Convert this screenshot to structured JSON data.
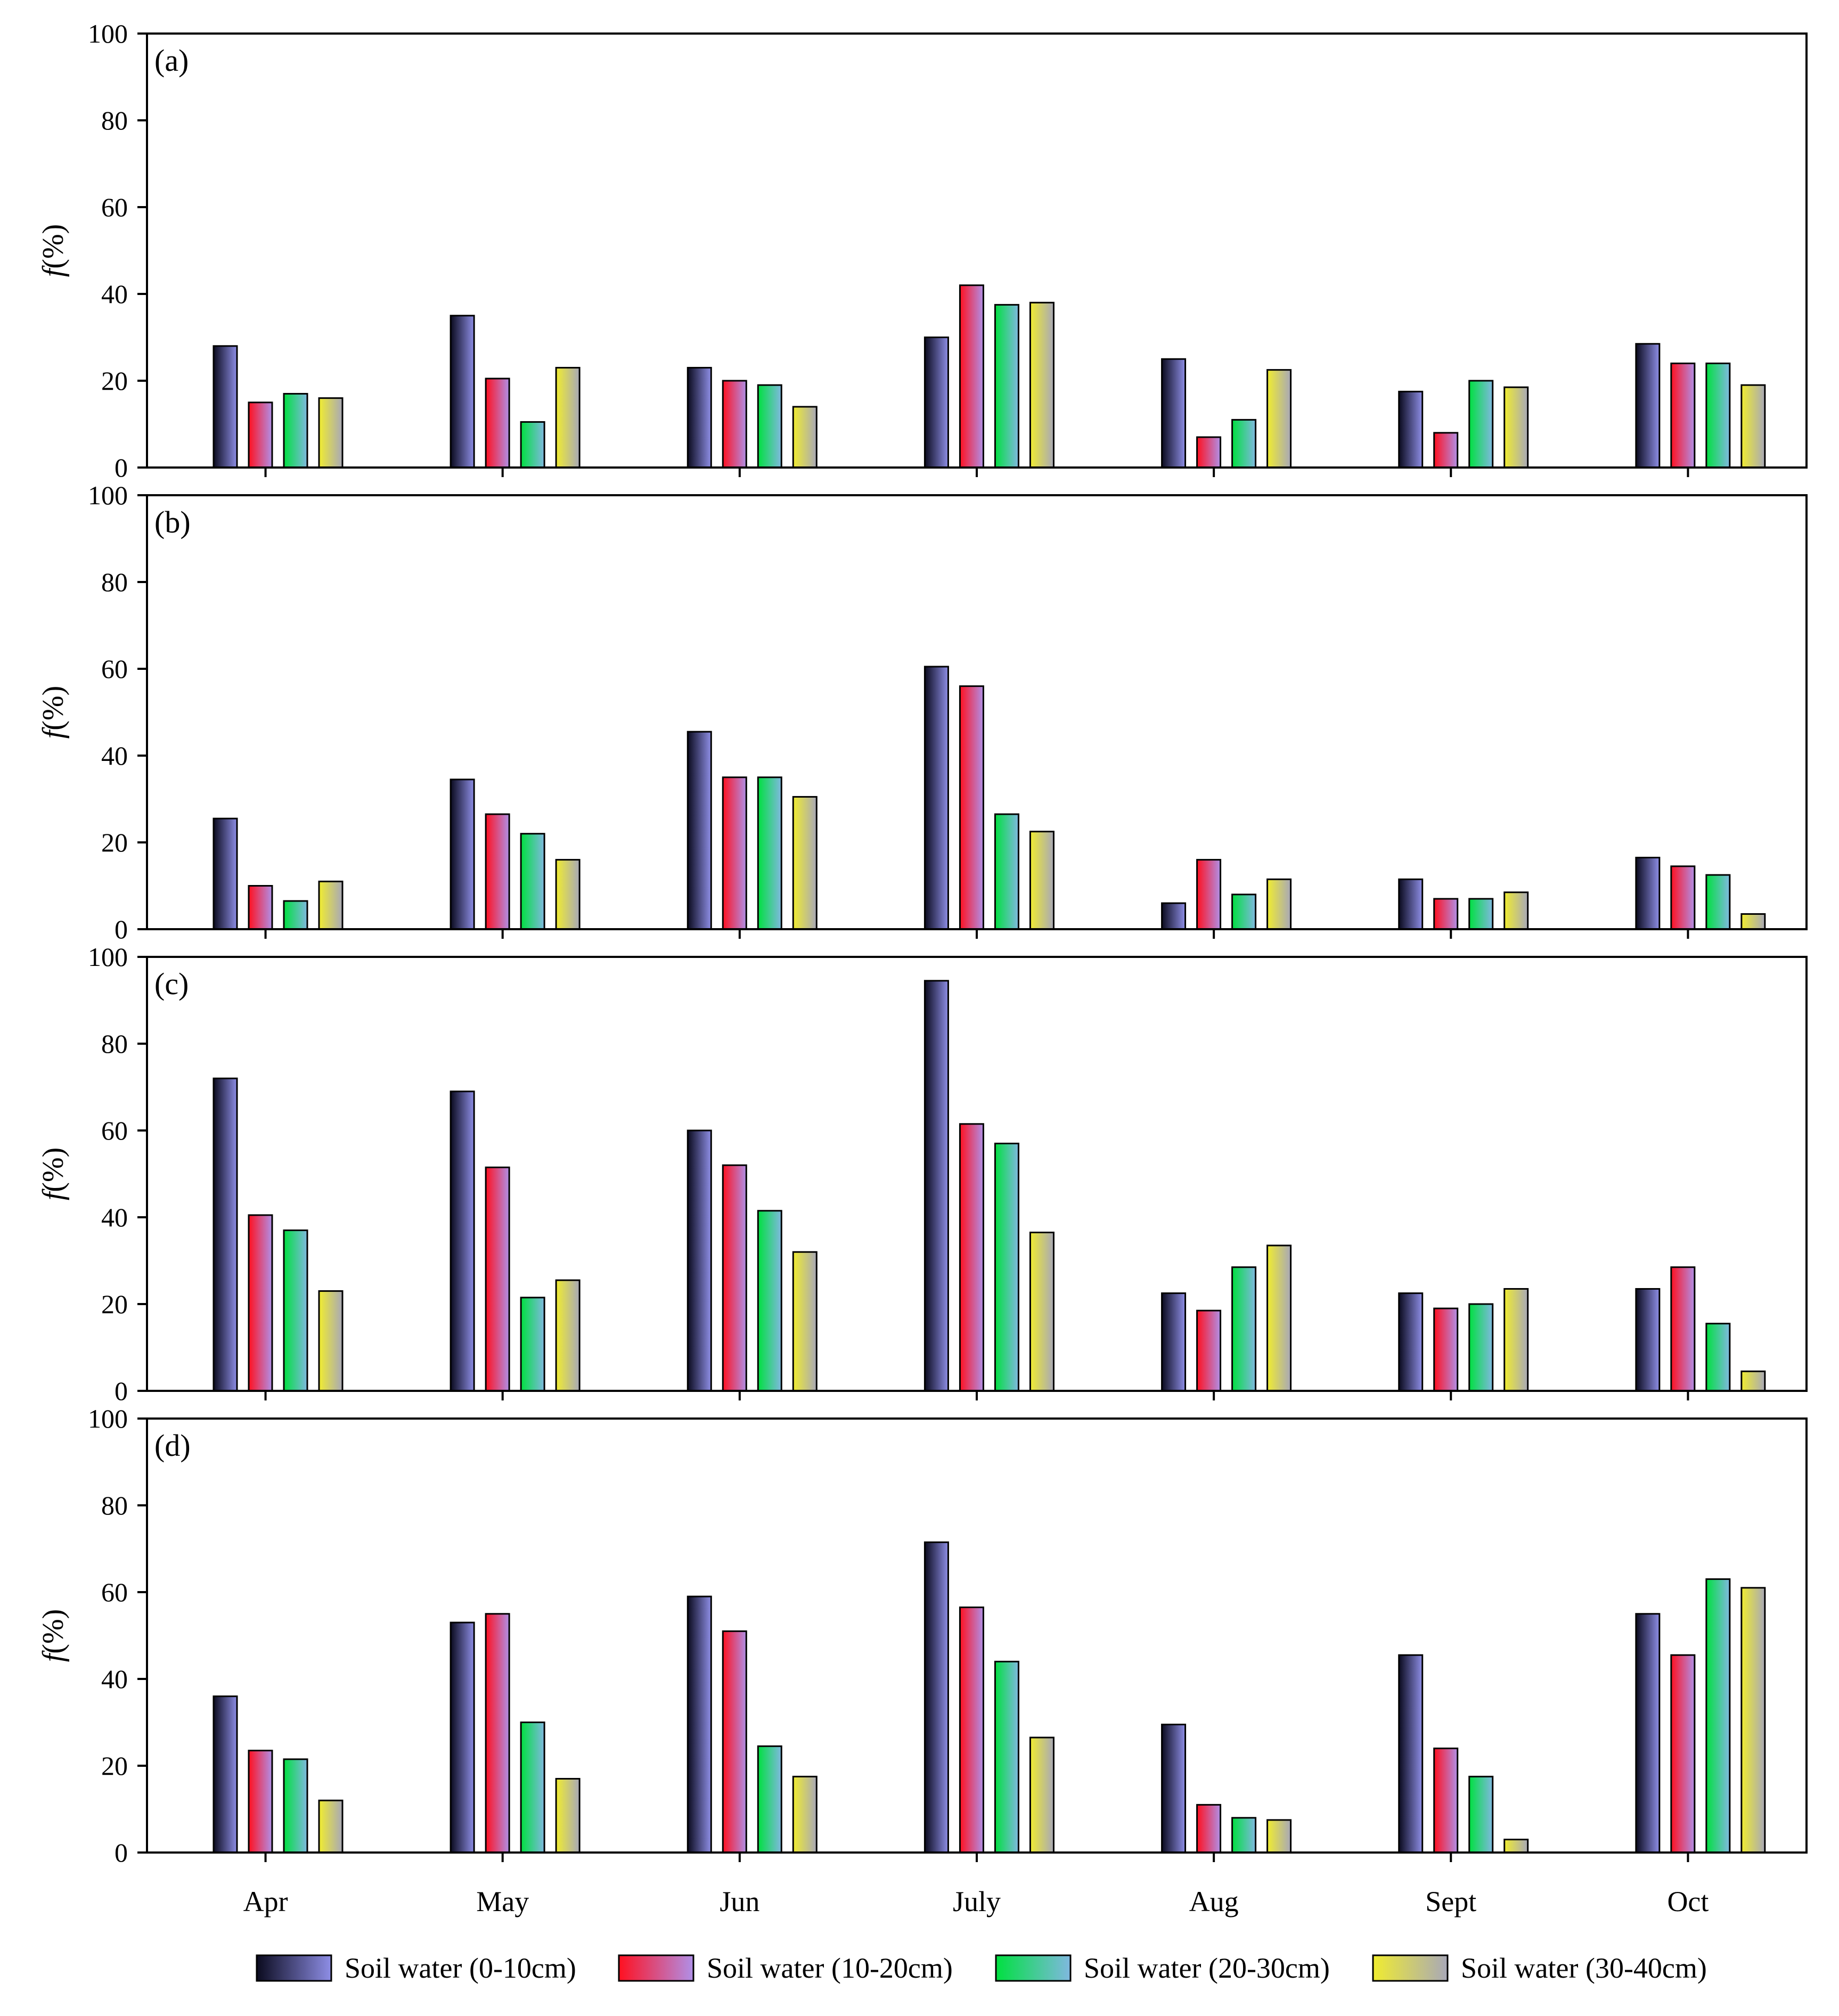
{
  "chart_data": {
    "type": "bar",
    "ylabel": "f(%)",
    "ylabel_italic": "f",
    "ylabel_rest": "(%)",
    "ylim": [
      0,
      100
    ],
    "yticks": [
      "0",
      "20",
      "40",
      "60",
      "80",
      "100"
    ],
    "categories": [
      "Apr",
      "May",
      "Jun",
      "July",
      "Aug",
      "Sept",
      "Oct"
    ],
    "series_names": [
      "Soil water (0-10cm)",
      "Soil water (10-20cm)",
      "Soil water (20-30cm)",
      "Soil water (30-40cm)"
    ],
    "series_colors": [
      [
        "#0a0a1e",
        "#8e8ee6"
      ],
      [
        "#ff1020",
        "#b090e8"
      ],
      [
        "#00e040",
        "#80b8e0"
      ],
      [
        "#f0ec30",
        "#a8a8b8"
      ]
    ],
    "panels": [
      {
        "label": "(a)",
        "values": [
          [
            28,
            35,
            23,
            30,
            25,
            17.5,
            28.5
          ],
          [
            15,
            20.5,
            20,
            42,
            7,
            8,
            24
          ],
          [
            17,
            10.5,
            19,
            37.5,
            11,
            20,
            24
          ],
          [
            16,
            23,
            14,
            38,
            22.5,
            18.5,
            19
          ]
        ]
      },
      {
        "label": "(b)",
        "values": [
          [
            25.5,
            34.5,
            45.5,
            60.5,
            6,
            11.5,
            16.5
          ],
          [
            10,
            26.5,
            35,
            56,
            16,
            7,
            14.5
          ],
          [
            6.5,
            22,
            35,
            26.5,
            8,
            7,
            12.5
          ],
          [
            11,
            16,
            30.5,
            22.5,
            11.5,
            8.5,
            3.5
          ]
        ]
      },
      {
        "label": "(c)",
        "values": [
          [
            72,
            69,
            60,
            94.5,
            22.5,
            22.5,
            23.5
          ],
          [
            40.5,
            51.5,
            52,
            61.5,
            18.5,
            19,
            28.5
          ],
          [
            37,
            21.5,
            41.5,
            57,
            28.5,
            20,
            15.5
          ],
          [
            23,
            25.5,
            32,
            36.5,
            33.5,
            23.5,
            4.5
          ]
        ]
      },
      {
        "label": "(d)",
        "values": [
          [
            36,
            53,
            59,
            71.5,
            29.5,
            45.5,
            55
          ],
          [
            23.5,
            55,
            51,
            56.5,
            11,
            24,
            45.5
          ],
          [
            21.5,
            30,
            24.5,
            44,
            8,
            17.5,
            63
          ],
          [
            12,
            17,
            17.5,
            26.5,
            7.5,
            3,
            61
          ]
        ]
      }
    ],
    "legend_position": "bottom"
  }
}
